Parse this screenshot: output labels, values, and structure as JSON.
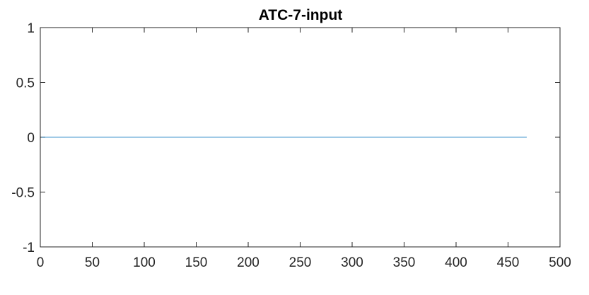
{
  "chart_data": {
    "type": "line",
    "title": "ATC-7-input",
    "xlabel": "",
    "ylabel": "",
    "xlim": [
      0,
      500
    ],
    "ylim": [
      -1,
      1
    ],
    "xticks": [
      0,
      50,
      100,
      150,
      200,
      250,
      300,
      350,
      400,
      450,
      500
    ],
    "yticks": [
      -1,
      -0.5,
      0,
      0.5,
      1
    ],
    "xtick_labels": [
      "0",
      "50",
      "100",
      "150",
      "200",
      "250",
      "300",
      "350",
      "400",
      "450",
      "500"
    ],
    "ytick_labels": [
      "-1",
      "-0.5",
      "0",
      "0.5",
      "1"
    ],
    "grid": false,
    "series": [
      {
        "color": "#0072BD",
        "x": [
          1,
          468
        ],
        "y": [
          0,
          0
        ]
      }
    ]
  }
}
